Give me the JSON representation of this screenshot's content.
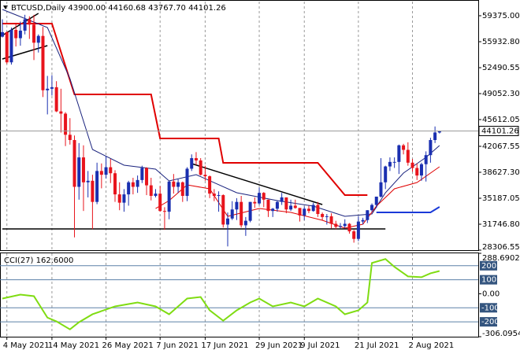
{
  "chart_data": [
    {
      "type": "candlestick",
      "title": "BTCUSD,Daily  43900.00 44160.68 43767.70 44101.26",
      "open": [
        56600,
        57200,
        53200,
        57500,
        56400,
        57400,
        58900,
        58200,
        55800,
        56700,
        49500,
        49700,
        49900,
        46700,
        46400,
        43600,
        42900,
        36700,
        40600,
        37300,
        37500,
        34700,
        38800,
        38300,
        39300,
        38500,
        35700,
        34600,
        35700,
        37300,
        36700,
        37600,
        39200,
        36900,
        35500,
        35800,
        33500,
        33400,
        37400,
        36700,
        37300,
        35500,
        39100,
        40500,
        40200,
        38300,
        38100,
        35800,
        35500,
        35600,
        31700,
        32500,
        33700,
        34700,
        31600,
        32200,
        34700,
        34500,
        35900,
        35000,
        33500,
        33800,
        34700,
        35300,
        33700,
        34200,
        33900,
        32900,
        33800,
        33500,
        34300,
        33100,
        32700,
        32800,
        31800,
        31400,
        31500,
        31800,
        30800,
        29800,
        32100,
        32300,
        33600,
        34300,
        35400,
        37300,
        39400,
        40000,
        40000,
        42200,
        41600,
        39900,
        39200,
        38200,
        39700,
        40900,
        42900,
        43900
      ],
      "high": [
        58900,
        57300,
        57800,
        58300,
        58600,
        59500,
        59300,
        59500,
        56900,
        57900,
        51400,
        51500,
        50700,
        49700,
        46600,
        45800,
        43500,
        42500,
        42200,
        38800,
        38300,
        39900,
        39800,
        40800,
        40400,
        38900,
        37300,
        36400,
        37500,
        37900,
        38200,
        39500,
        39300,
        37900,
        36400,
        36800,
        34000,
        37500,
        38400,
        37700,
        37400,
        39300,
        41000,
        41300,
        40500,
        39500,
        38200,
        36400,
        36100,
        35700,
        33300,
        34800,
        35200,
        35500,
        32700,
        34700,
        35300,
        36600,
        36000,
        35000,
        33900,
        34900,
        35900,
        35300,
        35000,
        35000,
        33900,
        34100,
        34200,
        34600,
        34700,
        33300,
        33100,
        33200,
        32200,
        31900,
        32400,
        31900,
        31000,
        32800,
        32600,
        33600,
        34500,
        35400,
        40500,
        39500,
        40600,
        40600,
        42300,
        42400,
        42600,
        40400,
        39800,
        39900,
        41400,
        43200,
        44700,
        44160.68
      ],
      "low": [
        56500,
        53000,
        52900,
        55300,
        55400,
        56900,
        56300,
        53500,
        54500,
        48600,
        46300,
        48800,
        46600,
        43900,
        42100,
        42300,
        30000,
        35000,
        33500,
        35300,
        31100,
        34400,
        36500,
        37800,
        37200,
        34700,
        33600,
        33400,
        34200,
        35700,
        35900,
        37200,
        35600,
        34900,
        35300,
        33400,
        31000,
        32400,
        35800,
        35900,
        34700,
        34800,
        38800,
        39600,
        38200,
        37500,
        35200,
        34800,
        33400,
        31300,
        28800,
        32300,
        32300,
        31300,
        30200,
        32000,
        33900,
        34300,
        34000,
        32700,
        32700,
        33400,
        34300,
        33200,
        33500,
        33800,
        32100,
        32300,
        33200,
        33400,
        32700,
        32300,
        31700,
        31200,
        31100,
        31200,
        31200,
        30500,
        29300,
        29500,
        31700,
        31900,
        33400,
        33900,
        35300,
        36400,
        38800,
        39200,
        38400,
        41000,
        39500,
        38700,
        37600,
        37500,
        37400,
        39900,
        42500,
        43767.7
      ],
      "close": [
        57200,
        53200,
        57500,
        56400,
        57400,
        58900,
        58200,
        55800,
        56700,
        49500,
        49700,
        49900,
        46700,
        46400,
        43600,
        42900,
        36700,
        40600,
        37300,
        37500,
        34700,
        38800,
        38300,
        39300,
        38500,
        35700,
        34600,
        35700,
        37300,
        36700,
        37600,
        39200,
        36900,
        35500,
        35800,
        33500,
        33400,
        37400,
        36700,
        37300,
        35500,
        39100,
        40500,
        40200,
        38300,
        38100,
        35800,
        35500,
        35600,
        31700,
        32500,
        33700,
        34700,
        31600,
        32200,
        34700,
        34500,
        35900,
        35000,
        33500,
        33800,
        34700,
        35300,
        33700,
        34200,
        33900,
        32900,
        33800,
        33500,
        34300,
        33100,
        32700,
        32800,
        31800,
        31400,
        31500,
        31800,
        30800,
        29800,
        32100,
        32300,
        33600,
        34300,
        35400,
        37300,
        39400,
        40000,
        40000,
        42200,
        41600,
        39900,
        39200,
        38200,
        39700,
        40900,
        42900,
        43900,
        44101.26
      ],
      "bull_color": "#1a2fb0",
      "bear_color": "#e8141c",
      "lines": [
        {
          "color": "#e00000",
          "width": 2,
          "x": [
            0,
            11,
            16,
            33,
            35,
            48,
            49,
            70,
            76,
            81
          ],
          "values": [
            58332,
            58332,
            48949,
            48949,
            43110,
            43110,
            39878,
            39878,
            35603,
            35603
          ]
        },
        {
          "color": "#1a3ad8",
          "width": 2,
          "x": [
            83,
            95,
            97
          ],
          "values": [
            33310,
            33310,
            34040
          ]
        },
        {
          "color": "#1a237e",
          "width": 1,
          "x": [
            0,
            10,
            15,
            20,
            27,
            34,
            37,
            43,
            52,
            61,
            69,
            76,
            82,
            85,
            89,
            94,
            97
          ],
          "values": [
            60209,
            57811,
            51034,
            41651,
            39566,
            39045,
            37481,
            38315,
            35917,
            34874,
            34145,
            32789,
            33102,
            35917,
            38523,
            40608,
            42172
          ]
        },
        {
          "color": "#e00000",
          "width": 1,
          "x": [
            34,
            37,
            41,
            46,
            50,
            57,
            64,
            71,
            76,
            80,
            83,
            87,
            92,
            97
          ],
          "values": [
            33831,
            34874,
            36959,
            36438,
            32789,
            33831,
            33310,
            32267,
            31224,
            31746,
            34145,
            36438,
            37272,
            39357
          ]
        }
      ],
      "trendlines": [
        {
          "x": [
            0,
            8
          ],
          "values": [
            56769,
            59688
          ]
        },
        {
          "x": [
            0,
            10
          ],
          "values": [
            53641,
            55413
          ]
        },
        {
          "x": [
            0,
            85
          ],
          "values": [
            31121,
            31121
          ]
        },
        {
          "x": [
            42,
            71
          ],
          "values": [
            39774,
            34353
          ]
        }
      ],
      "trendline_color": "#000000",
      "last_price": 44101.26,
      "ylim": [
        28306.55,
        61251.7
      ],
      "yticks": [
        {
          "value": 59375,
          "label": "59375.00"
        },
        {
          "value": 55932.8,
          "label": "55932.80"
        },
        52490.55,
        {
          "value": 49052.3,
          "label": "49052.30"
        },
        45612.05,
        42067.55,
        {
          "value": 38627.3,
          "label": "38627.30"
        },
        35187.05,
        {
          "value": 31746.8,
          "label": "31746.80"
        },
        28306.55
      ],
      "xticks": [
        {
          "value": 1,
          "label": "4 May 2021"
        },
        {
          "value": 11,
          "label": "14 May 2021"
        },
        {
          "value": 23,
          "label": "26 May 2021"
        },
        {
          "value": 35,
          "label": "7 Jun 2021"
        },
        {
          "value": 45,
          "label": "17 Jun 2021"
        },
        {
          "value": 57,
          "label": "29 Jun 2021"
        },
        {
          "value": 67,
          "label": "9 Jul 2021"
        },
        {
          "value": 79,
          "label": "21 Jul 2021"
        },
        {
          "value": 91,
          "label": "2 Aug 2021"
        }
      ],
      "grid": true
    },
    {
      "type": "line",
      "title": "CCI(27) 162.6000",
      "x": [
        0,
        4,
        7,
        10,
        12,
        15,
        17,
        20,
        25,
        30,
        34,
        37,
        41,
        44,
        46,
        49,
        52,
        55,
        57,
        60,
        64,
        67,
        70,
        74,
        76,
        79,
        81,
        82,
        85,
        87,
        90,
        93,
        95,
        97
      ],
      "values": [
        -34,
        -6,
        -17,
        -170,
        -197,
        -254,
        -203,
        -146,
        -90,
        -62,
        -90,
        -146,
        -34,
        -23,
        -118,
        -192,
        -118,
        -62,
        -34,
        -90,
        -62,
        -90,
        -34,
        -90,
        -146,
        -118,
        -62,
        220,
        248,
        192,
        124,
        118,
        146,
        162.6
      ],
      "color": "#7fdc12",
      "ylim": [
        -306.0954,
        288.6902
      ],
      "yticks": [
        288.6902,
        {
          "value": 0,
          "label": "0.00"
        },
        -306.0954
      ],
      "levels": [
        200,
        100,
        -100,
        -200
      ],
      "level_color": "#5b80a8"
    }
  ]
}
